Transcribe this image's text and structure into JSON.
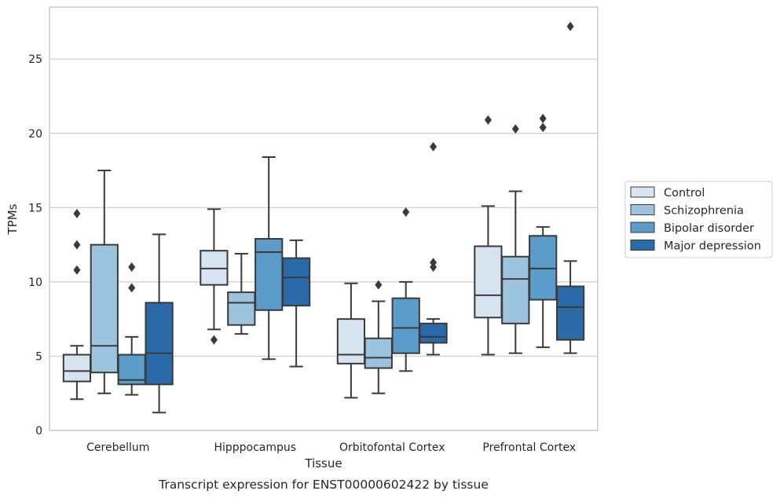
{
  "chart_data": {
    "type": "box",
    "caption": "Transcript expression for ENST00000602422 by tissue",
    "xlabel": "Tissue",
    "ylabel": "TPMs",
    "ylim": [
      0,
      28.5
    ],
    "yticks": [
      0,
      5,
      10,
      15,
      20,
      25
    ],
    "grid": "horizontal",
    "legend_position": "right",
    "categories": [
      "Cerebellum",
      "Hipppocampus",
      "Orbitofontal Cortex",
      "Prefrontal Cortex"
    ],
    "series": [
      {
        "name": "Control",
        "color": "#d6e3f0",
        "boxes": [
          {
            "whisker_low": 2.1,
            "q1": 3.3,
            "median": 4.0,
            "q3": 5.1,
            "whisker_high": 5.7,
            "outliers": [
              14.6,
              12.5,
              10.8
            ]
          },
          {
            "whisker_low": 6.8,
            "q1": 9.8,
            "median": 10.9,
            "q3": 12.1,
            "whisker_high": 14.9,
            "outliers": [
              6.1
            ]
          },
          {
            "whisker_low": 2.2,
            "q1": 4.5,
            "median": 5.1,
            "q3": 7.5,
            "whisker_high": 9.9,
            "outliers": []
          },
          {
            "whisker_low": 5.1,
            "q1": 7.6,
            "median": 9.1,
            "q3": 12.4,
            "whisker_high": 15.1,
            "outliers": [
              20.9
            ]
          }
        ]
      },
      {
        "name": "Schizophrenia",
        "color": "#9cc4df",
        "boxes": [
          {
            "whisker_low": 2.5,
            "q1": 3.9,
            "median": 5.7,
            "q3": 12.5,
            "whisker_high": 17.5,
            "outliers": []
          },
          {
            "whisker_low": 6.5,
            "q1": 7.1,
            "median": 8.6,
            "q3": 9.3,
            "whisker_high": 11.9,
            "outliers": []
          },
          {
            "whisker_low": 2.5,
            "q1": 4.2,
            "median": 4.9,
            "q3": 6.2,
            "whisker_high": 8.7,
            "outliers": [
              9.8
            ]
          },
          {
            "whisker_low": 5.2,
            "q1": 7.2,
            "median": 10.2,
            "q3": 11.7,
            "whisker_high": 16.1,
            "outliers": [
              20.3
            ]
          }
        ]
      },
      {
        "name": "Bipolar disorder",
        "color": "#5b9ccb",
        "boxes": [
          {
            "whisker_low": 2.4,
            "q1": 3.1,
            "median": 3.4,
            "q3": 5.1,
            "whisker_high": 6.3,
            "outliers": [
              11.0,
              9.6
            ]
          },
          {
            "whisker_low": 4.8,
            "q1": 8.1,
            "median": 12.0,
            "q3": 12.9,
            "whisker_high": 18.4,
            "outliers": []
          },
          {
            "whisker_low": 4.0,
            "q1": 5.2,
            "median": 6.9,
            "q3": 8.9,
            "whisker_high": 10.0,
            "outliers": [
              14.7
            ]
          },
          {
            "whisker_low": 5.6,
            "q1": 8.8,
            "median": 10.9,
            "q3": 13.1,
            "whisker_high": 13.7,
            "outliers": [
              21.0,
              20.4
            ]
          }
        ]
      },
      {
        "name": "Major depression",
        "color": "#2b6aa9",
        "boxes": [
          {
            "whisker_low": 1.2,
            "q1": 3.1,
            "median": 5.2,
            "q3": 8.6,
            "whisker_high": 13.2,
            "outliers": []
          },
          {
            "whisker_low": 4.3,
            "q1": 8.4,
            "median": 10.3,
            "q3": 11.6,
            "whisker_high": 12.8,
            "outliers": []
          },
          {
            "whisker_low": 5.1,
            "q1": 5.9,
            "median": 6.3,
            "q3": 7.2,
            "whisker_high": 7.5,
            "outliers": [
              19.1,
              11.3,
              11.0
            ]
          },
          {
            "whisker_low": 5.2,
            "q1": 6.1,
            "median": 8.3,
            "q3": 9.7,
            "whisker_high": 11.4,
            "outliers": [
              27.2
            ]
          }
        ]
      }
    ]
  }
}
